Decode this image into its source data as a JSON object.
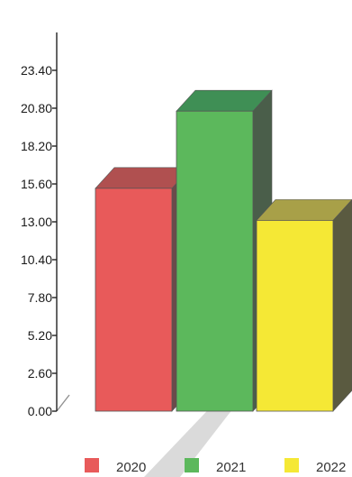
{
  "chart_data": {
    "type": "bar",
    "categories": [
      "2020",
      "2021",
      "2022"
    ],
    "values": [
      15.3,
      20.6,
      13.1
    ],
    "yticks": [
      "0.00",
      "2.60",
      "5.20",
      "7.80",
      "10.40",
      "13.00",
      "15.60",
      "18.20",
      "20.80",
      "23.40"
    ],
    "ylim": [
      0,
      23.4
    ],
    "colors": [
      "#e85a5a",
      "#5cb85c",
      "#f5e835"
    ],
    "side_colors": [
      "#6b4a4a",
      "#4a5e4a",
      "#5a5a40"
    ],
    "top_colors": [
      "#b05050",
      "#3f8f55",
      "#a8a048"
    ],
    "legend": {
      "position": "bottom",
      "items": [
        {
          "label": "2020",
          "color": "#e85a5a"
        },
        {
          "label": "2021",
          "color": "#5cb85c"
        },
        {
          "label": "2022",
          "color": "#f5e835"
        }
      ]
    },
    "three_d": true,
    "grid": false
  }
}
